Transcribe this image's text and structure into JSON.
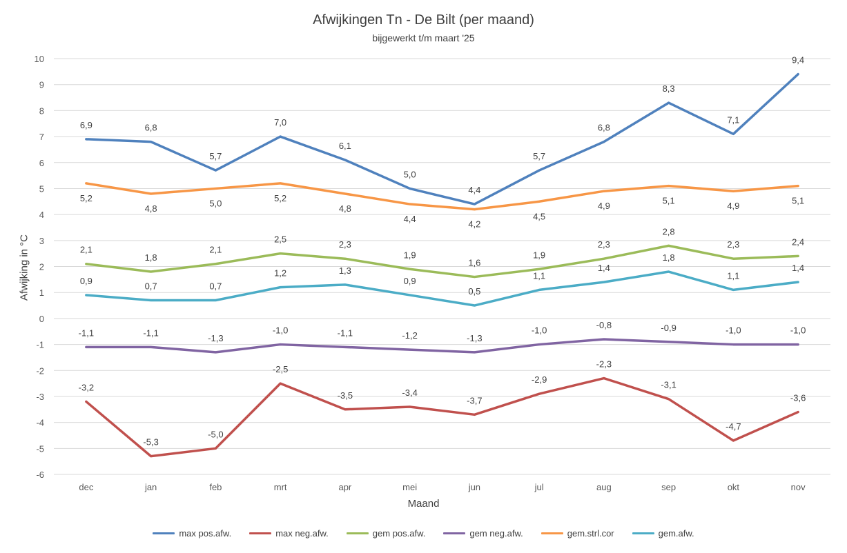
{
  "chart_data": {
    "type": "line",
    "title": "Afwijkingen Tn - De Bilt (per maand)",
    "subtitle": "bijgewerkt t/m maart '25",
    "xlabel": "Maand",
    "ylabel": "Afwijking in °C",
    "ylim": [
      -6,
      10
    ],
    "yticks": [
      "10",
      "9",
      "8",
      "7",
      "6",
      "5",
      "4",
      "3",
      "2",
      "1",
      "0",
      "-1",
      "-2",
      "-3",
      "-4",
      "-5",
      "-6"
    ],
    "grid": "horizontal",
    "legend_position": "bottom",
    "categories": [
      "dec",
      "jan",
      "feb",
      "mrt",
      "apr",
      "mei",
      "jun",
      "jul",
      "aug",
      "sep",
      "okt",
      "nov"
    ],
    "series": [
      {
        "name": "max pos.afw.",
        "color": "#4F81BD",
        "label_side": "above",
        "values": [
          6.9,
          6.8,
          5.7,
          7.0,
          6.1,
          5.0,
          4.4,
          5.7,
          6.8,
          8.3,
          7.1,
          9.4
        ],
        "labels": [
          "6,9",
          "6,8",
          "5,7",
          "7,0",
          "6,1",
          "5,0",
          "4,4",
          "5,7",
          "6,8",
          "8,3",
          "7,1",
          "9,4"
        ]
      },
      {
        "name": "max neg.afw.",
        "color": "#C0504D",
        "label_side": "above",
        "values": [
          -3.2,
          -5.3,
          -5.0,
          -2.5,
          -3.5,
          -3.4,
          -3.7,
          -2.9,
          -2.3,
          -3.1,
          -4.7,
          -3.6
        ],
        "labels": [
          "-3,2",
          "-5,3",
          "-5,0",
          "-2,5",
          "-3,5",
          "-3,4",
          "-3,7",
          "-2,9",
          "-2,3",
          "-3,1",
          "-4,7",
          "-3,6"
        ]
      },
      {
        "name": "gem pos.afw.",
        "color": "#9BBB59",
        "label_side": "above",
        "values": [
          2.1,
          1.8,
          2.1,
          2.5,
          2.3,
          1.9,
          1.6,
          1.9,
          2.3,
          2.8,
          2.3,
          2.4
        ],
        "labels": [
          "2,1",
          "1,8",
          "2,1",
          "2,5",
          "2,3",
          "1,9",
          "1,6",
          "1,9",
          "2,3",
          "2,8",
          "2,3",
          "2,4"
        ]
      },
      {
        "name": "gem neg.afw.",
        "color": "#8064A2",
        "label_side": "above",
        "values": [
          -1.1,
          -1.1,
          -1.3,
          -1.0,
          -1.1,
          -1.2,
          -1.3,
          -1.0,
          -0.8,
          -0.9,
          -1.0,
          -1.0
        ],
        "labels": [
          "-1,1",
          "-1,1",
          "-1,3",
          "-1,0",
          "-1,1",
          "-1,2",
          "-1,3",
          "-1,0",
          "-0,8",
          "-0,9",
          "-1,0",
          "-1,0"
        ]
      },
      {
        "name": "gem.strl.cor",
        "color": "#F79646",
        "label_side": "below",
        "values": [
          5.2,
          4.8,
          5.0,
          5.2,
          4.8,
          4.4,
          4.2,
          4.5,
          4.9,
          5.1,
          4.9,
          5.1
        ],
        "labels": [
          "5,2",
          "4,8",
          "5,0",
          "5,2",
          "4,8",
          "4,4",
          "4,2",
          "4,5",
          "4,9",
          "5,1",
          "4,9",
          "5,1"
        ]
      },
      {
        "name": "gem.afw.",
        "color": "#4BACC6",
        "label_side": "above",
        "values": [
          0.9,
          0.7,
          0.7,
          1.2,
          1.3,
          0.9,
          0.5,
          1.1,
          1.4,
          1.8,
          1.1,
          1.4
        ],
        "labels": [
          "0,9",
          "0,7",
          "0,7",
          "1,2",
          "1,3",
          "0,9",
          "0,5",
          "1,1",
          "1,4",
          "1,8",
          "1,1",
          "1,4"
        ]
      }
    ]
  }
}
